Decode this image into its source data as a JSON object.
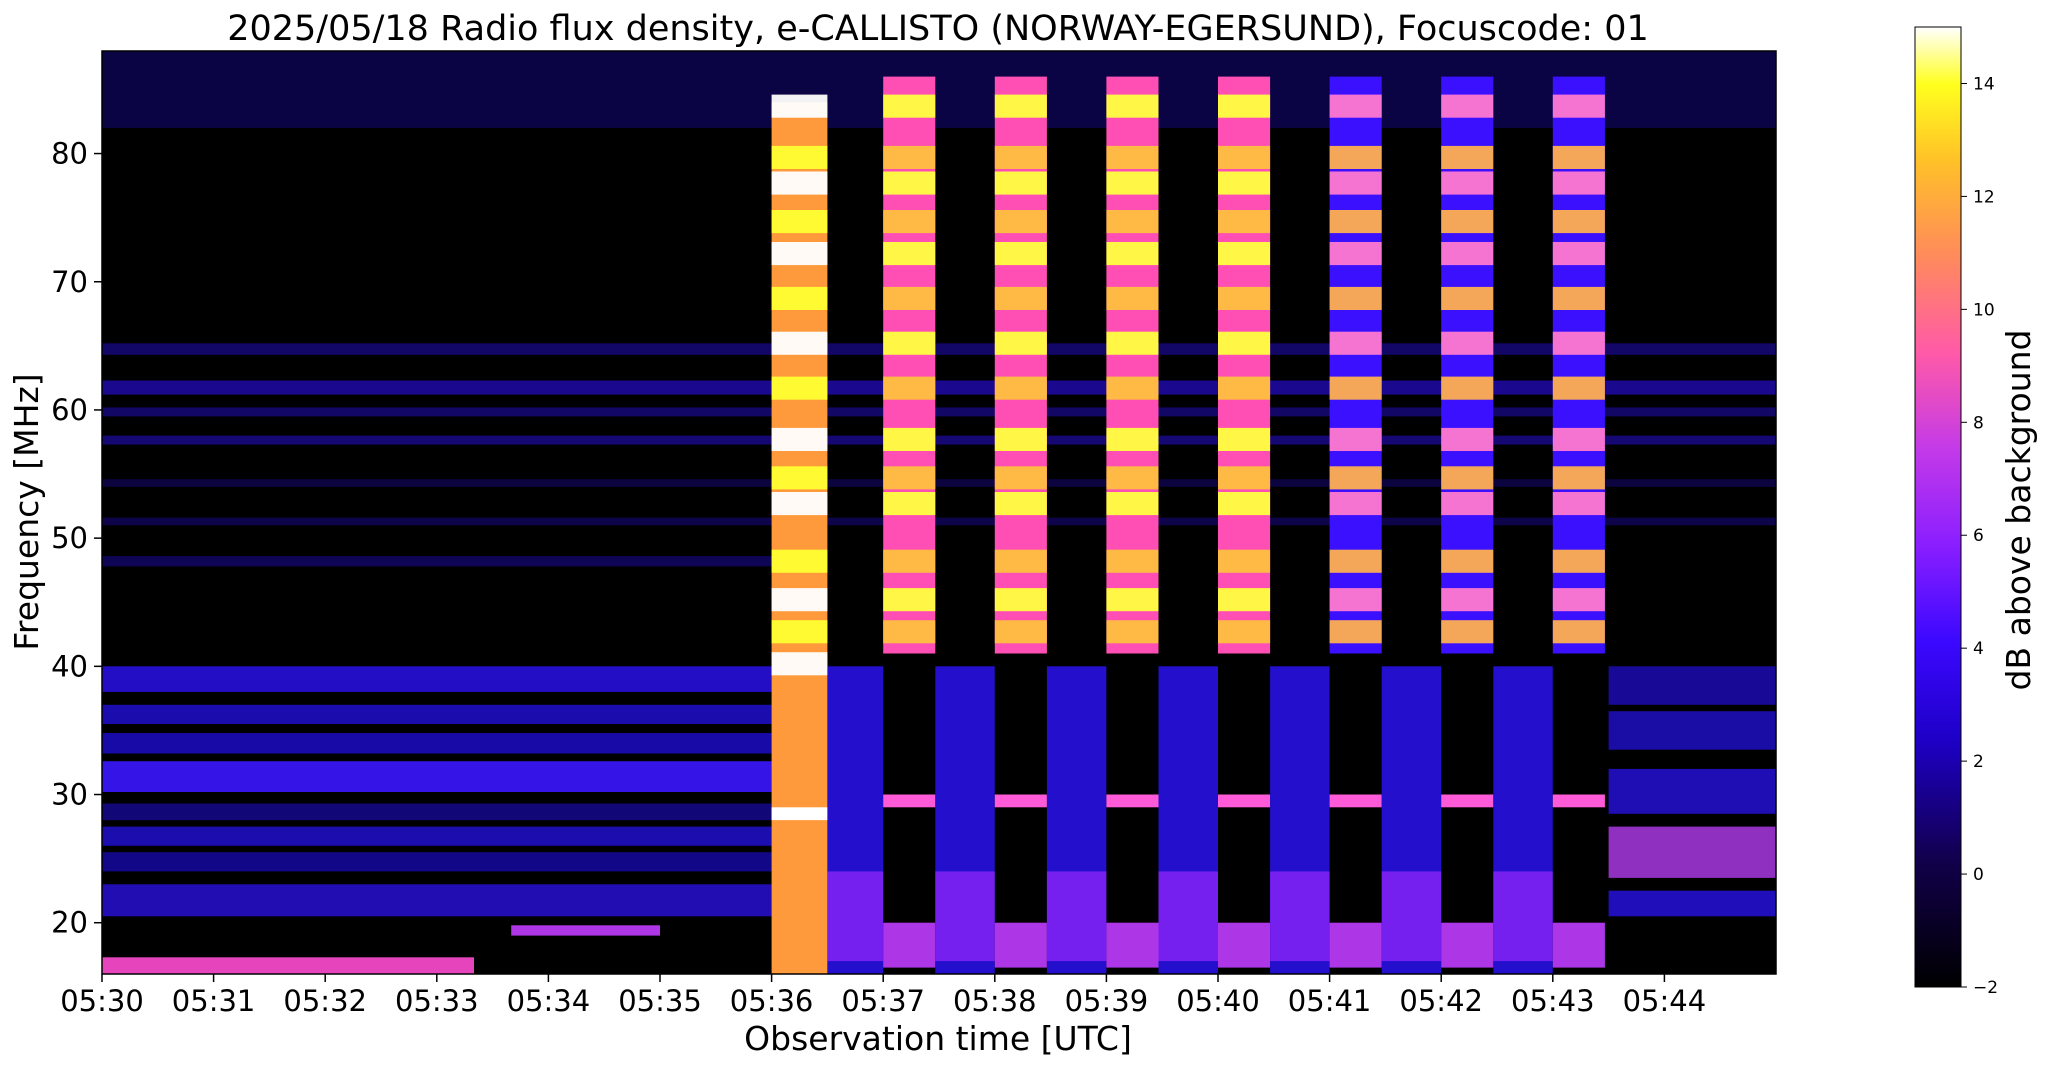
{
  "chart_data": {
    "type": "heatmap",
    "title": "2025/05/18  Radio flux density, e-CALLISTO (NORWAY-EGERSUND), Focuscode: 01",
    "xlabel": "Observation time [UTC]",
    "ylabel": "Frequency [MHz]",
    "colorbar_label": "dB above background",
    "colormap": "gnuplot2",
    "x_ticks": [
      "05:30",
      "05:31",
      "05:32",
      "05:33",
      "05:34",
      "05:35",
      "05:36",
      "05:37",
      "05:38",
      "05:39",
      "05:40",
      "05:41",
      "05:42",
      "05:43",
      "05:44"
    ],
    "xlim": [
      "05:30",
      "05:45"
    ],
    "y_ticks": [
      20,
      30,
      40,
      50,
      60,
      70,
      80
    ],
    "ylim": [
      16,
      88
    ],
    "colorbar_ticks": [
      -2,
      0,
      2,
      4,
      6,
      8,
      10,
      12,
      14
    ],
    "colorbar_range": [
      -2,
      15
    ],
    "bursts": [
      {
        "start": "05:36:00",
        "end": "05:36:30",
        "level": "very_strong"
      },
      {
        "start": "05:37:00",
        "end": "05:37:28",
        "level": "strong"
      },
      {
        "start": "05:38:00",
        "end": "05:38:28",
        "level": "strong"
      },
      {
        "start": "05:39:00",
        "end": "05:39:28",
        "level": "strong"
      },
      {
        "start": "05:40:00",
        "end": "05:40:28",
        "level": "strong"
      },
      {
        "start": "05:41:00",
        "end": "05:41:28",
        "level": "medium"
      },
      {
        "start": "05:42:00",
        "end": "05:42:28",
        "level": "medium"
      },
      {
        "start": "05:43:00",
        "end": "05:43:28",
        "level": "medium"
      }
    ],
    "bright_bands_mhz": [
      84,
      80,
      78,
      75,
      72.5,
      69,
      65.5,
      62,
      58,
      55,
      53,
      48.5,
      45.5,
      43,
      40.5
    ]
  }
}
